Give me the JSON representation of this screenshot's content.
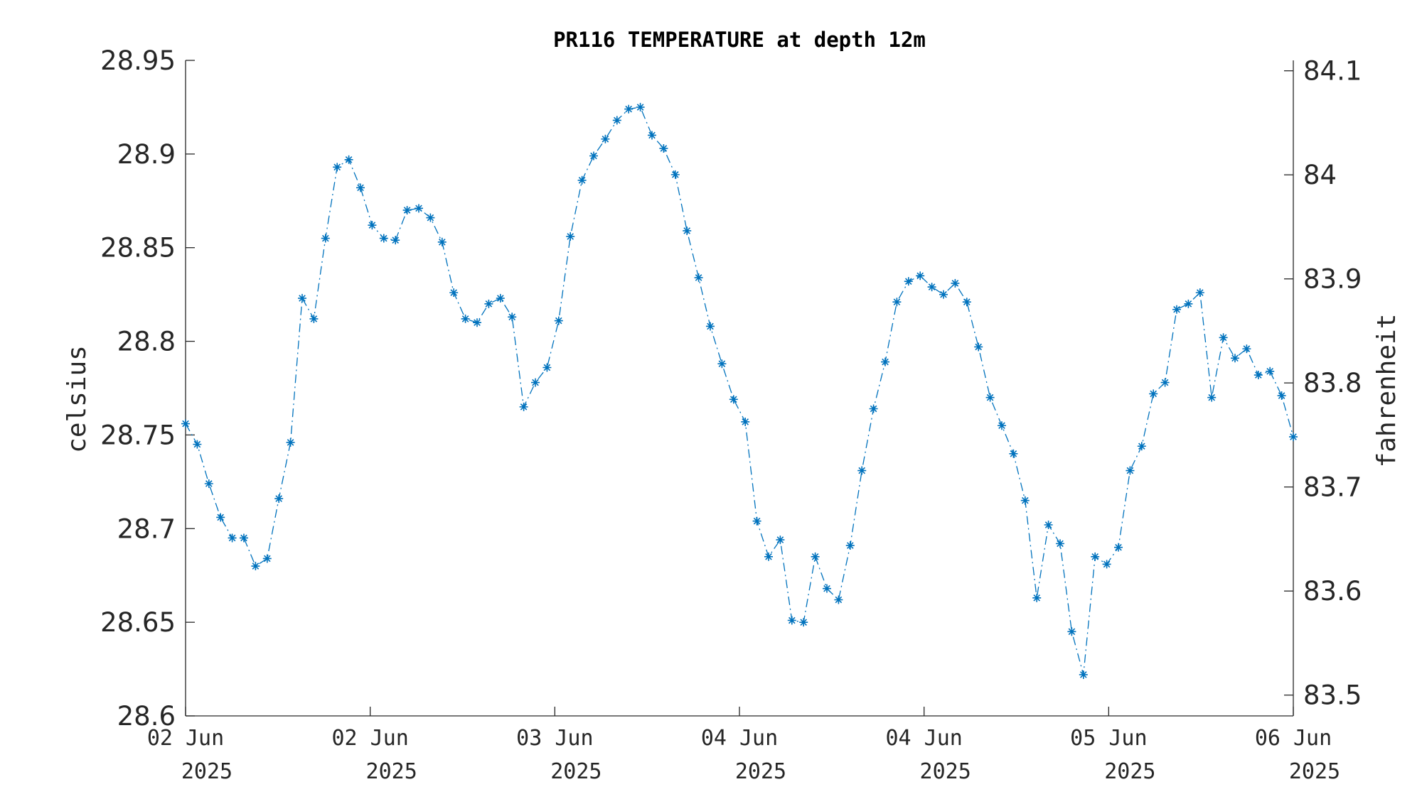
{
  "chart_data": {
    "type": "line",
    "title": "PR116 TEMPERATURE at depth 12m",
    "ylabel_left": "celsius",
    "ylabel_right": "fahrenheit",
    "ylim_left": [
      28.6,
      28.95
    ],
    "ylim_right_fahrenheit": [
      83.48,
      84.11
    ],
    "left_ticks": [
      "28.6",
      "28.65",
      "28.7",
      "28.75",
      "28.8",
      "28.85",
      "28.9",
      "28.95"
    ],
    "right_ticks": [
      "83.5",
      "83.6",
      "83.7",
      "83.8",
      "83.9",
      "84",
      "84.1"
    ],
    "x_ticks": [
      {
        "line1": "02 Jun",
        "line2": "2025"
      },
      {
        "line1": "02 Jun",
        "line2": "2025"
      },
      {
        "line1": "03 Jun",
        "line2": "2025"
      },
      {
        "line1": "04 Jun",
        "line2": "2025"
      },
      {
        "line1": "04 Jun",
        "line2": "2025"
      },
      {
        "line1": "05 Jun",
        "line2": "2025"
      },
      {
        "line1": "06 Jun",
        "line2": "2025"
      }
    ],
    "grid": false,
    "marker": "asterisk",
    "line_style": "dash-dot",
    "series_color": "#0072bd",
    "series": [
      {
        "values": [
          28.756,
          28.745,
          28.724,
          28.706,
          28.695,
          28.695,
          28.68,
          28.684,
          28.716,
          28.746,
          28.823,
          28.812,
          28.855,
          28.893,
          28.897,
          28.882,
          28.862,
          28.855,
          28.854,
          28.87,
          28.871,
          28.866,
          28.853,
          28.826,
          28.812,
          28.81,
          28.82,
          28.823,
          28.813,
          28.765,
          28.778,
          28.786,
          28.811,
          28.856,
          28.886,
          28.899,
          28.908,
          28.918,
          28.924,
          28.925,
          28.91,
          28.903,
          28.889,
          28.859,
          28.834,
          28.808,
          28.788,
          28.769,
          28.757,
          28.704,
          28.685,
          28.694,
          28.651,
          28.65,
          28.685,
          28.668,
          28.662,
          28.691,
          28.731,
          28.764,
          28.789,
          28.821,
          28.832,
          28.835,
          28.829,
          28.825,
          28.831,
          28.821,
          28.797,
          28.77,
          28.755,
          28.74,
          28.715,
          28.663,
          28.702,
          28.692,
          28.645,
          28.622,
          28.685,
          28.681,
          28.69,
          28.731,
          28.744,
          28.772,
          28.778,
          28.817,
          28.82,
          28.826,
          28.77,
          28.802,
          28.791,
          28.796,
          28.782,
          28.784,
          28.771,
          28.749
        ]
      }
    ]
  }
}
